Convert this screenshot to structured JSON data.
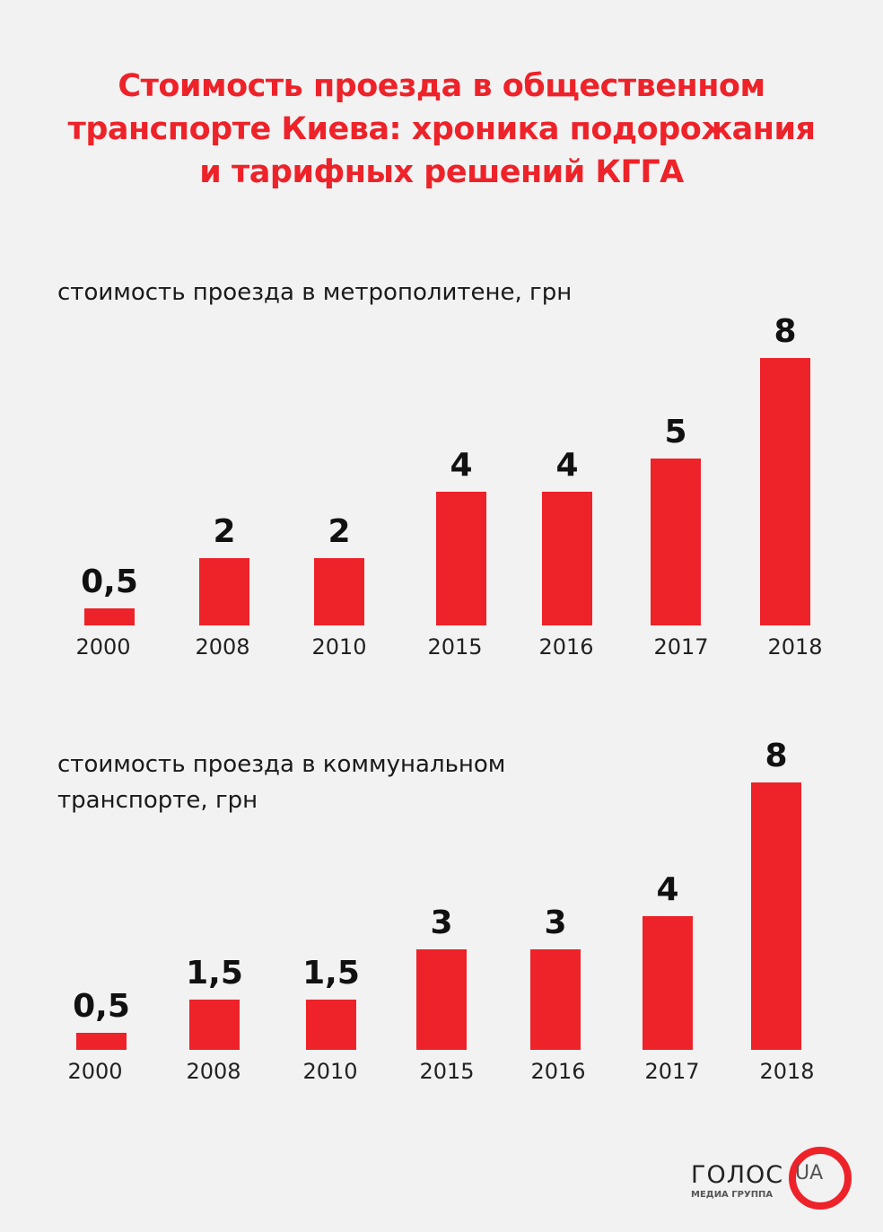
{
  "title": [
    "Стоимость проезда в общественном",
    "транспорте Киева: хроника подорожания",
    "и тарифных решений КГГА"
  ],
  "logo": {
    "name": "ГОЛОС",
    "suffix": "UA",
    "subtitle": "МЕДИА ГРУППА"
  },
  "chart_data": [
    {
      "type": "bar",
      "title": "стоимость проезда в метрополитене, грн",
      "categories": [
        "2000",
        "2008",
        "2010",
        "2015",
        "2016",
        "2017",
        "2018"
      ],
      "values": [
        0.5,
        2,
        2,
        4,
        4,
        5,
        8
      ],
      "labels": [
        "0,5",
        "2",
        "2",
        "4",
        "4",
        "5",
        "8"
      ],
      "color": "#ee2229"
    },
    {
      "type": "bar",
      "title": "стоимость проезда в коммунальном транспорте, грн",
      "title_lines": [
        "стоимость проезда в коммунальном",
        "транспорте, грн"
      ],
      "categories": [
        "2000",
        "2008",
        "2010",
        "2015",
        "2016",
        "2017",
        "2018"
      ],
      "values": [
        0.5,
        1.5,
        1.5,
        3,
        3,
        4,
        8
      ],
      "labels": [
        "0,5",
        "1,5",
        "1,5",
        "3",
        "3",
        "4",
        "8"
      ],
      "color": "#ee2229"
    }
  ]
}
